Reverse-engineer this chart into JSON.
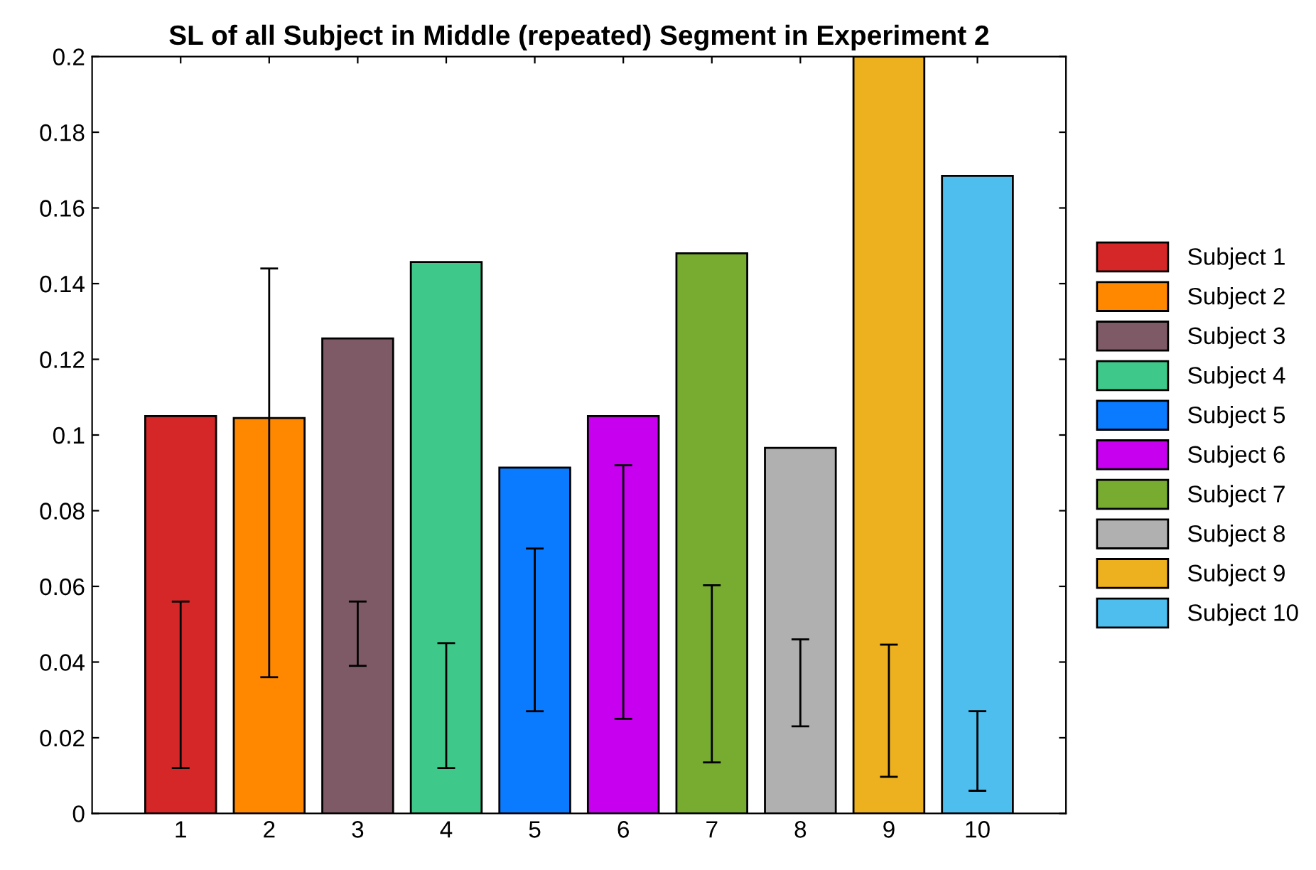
{
  "chart_data": {
    "type": "bar",
    "title": "SL of all Subject in Middle (repeated) Segment in Experiment 2",
    "categories": [
      "1",
      "2",
      "3",
      "4",
      "5",
      "6",
      "7",
      "8",
      "9",
      "10"
    ],
    "series": [
      {
        "name": "Subject 1",
        "color": "#d62728",
        "values": [
          0.105,
          null,
          null,
          null,
          null,
          null,
          null,
          null,
          null,
          null
        ],
        "errors": [
          [
            0.012,
            0.056
          ],
          null,
          null,
          null,
          null,
          null,
          null,
          null,
          null,
          null
        ]
      },
      {
        "name": "Subject 2",
        "color": "#ff8800",
        "values": [
          null,
          0.1045,
          null,
          null,
          null,
          null,
          null,
          null,
          null,
          null
        ],
        "errors": [
          null,
          [
            0.036,
            0.144
          ],
          null,
          null,
          null,
          null,
          null,
          null,
          null,
          null
        ]
      },
      {
        "name": "Subject 3",
        "color": "#7e5a66",
        "values": [
          null,
          null,
          0.1255,
          null,
          null,
          null,
          null,
          null,
          null,
          null
        ],
        "errors": [
          null,
          null,
          [
            0.039,
            0.056
          ],
          null,
          null,
          null,
          null,
          null,
          null,
          null
        ]
      },
      {
        "name": "Subject 4",
        "color": "#3ec98a",
        "values": [
          null,
          null,
          null,
          0.1457,
          null,
          null,
          null,
          null,
          null,
          null
        ],
        "errors": [
          null,
          null,
          null,
          [
            0.012,
            0.045
          ],
          null,
          null,
          null,
          null,
          null,
          null
        ]
      },
      {
        "name": "Subject 5",
        "color": "#0a7bff",
        "values": [
          null,
          null,
          null,
          null,
          0.0914,
          null,
          null,
          null,
          null,
          null
        ],
        "errors": [
          null,
          null,
          null,
          null,
          [
            0.027,
            0.07
          ],
          null,
          null,
          null,
          null,
          null
        ]
      },
      {
        "name": "Subject 6",
        "color": "#c800f0",
        "values": [
          null,
          null,
          null,
          null,
          null,
          0.105,
          null,
          null,
          null,
          null
        ],
        "errors": [
          null,
          null,
          null,
          null,
          null,
          [
            0.025,
            0.092
          ],
          null,
          null,
          null,
          null
        ]
      },
      {
        "name": "Subject 7",
        "color": "#77ac30",
        "values": [
          null,
          null,
          null,
          null,
          null,
          null,
          0.148,
          null,
          null,
          null
        ],
        "errors": [
          null,
          null,
          null,
          null,
          null,
          null,
          [
            0.0135,
            0.0603
          ],
          null,
          null,
          null
        ]
      },
      {
        "name": "Subject 8",
        "color": "#b0b0b0",
        "values": [
          null,
          null,
          null,
          null,
          null,
          null,
          null,
          0.0966,
          null,
          null
        ],
        "errors": [
          null,
          null,
          null,
          null,
          null,
          null,
          null,
          [
            0.023,
            0.046
          ],
          null,
          null
        ]
      },
      {
        "name": "Subject 9",
        "color": "#edb120",
        "values": [
          null,
          null,
          null,
          null,
          null,
          null,
          null,
          null,
          0.2,
          null
        ],
        "errors": [
          null,
          null,
          null,
          null,
          null,
          null,
          null,
          null,
          [
            0.0097,
            0.0446
          ],
          null
        ]
      },
      {
        "name": "Subject 10",
        "color": "#4dbeee",
        "values": [
          null,
          null,
          null,
          null,
          null,
          null,
          null,
          null,
          null,
          0.1685
        ],
        "errors": [
          null,
          null,
          null,
          null,
          null,
          null,
          null,
          null,
          null,
          [
            0.006,
            0.027
          ]
        ]
      }
    ],
    "ylim": [
      0,
      0.2
    ],
    "yticks": [
      0,
      0.02,
      0.04,
      0.06,
      0.08,
      0.1,
      0.12,
      0.14,
      0.16,
      0.18,
      0.2
    ],
    "grid": false,
    "legend": "right"
  }
}
